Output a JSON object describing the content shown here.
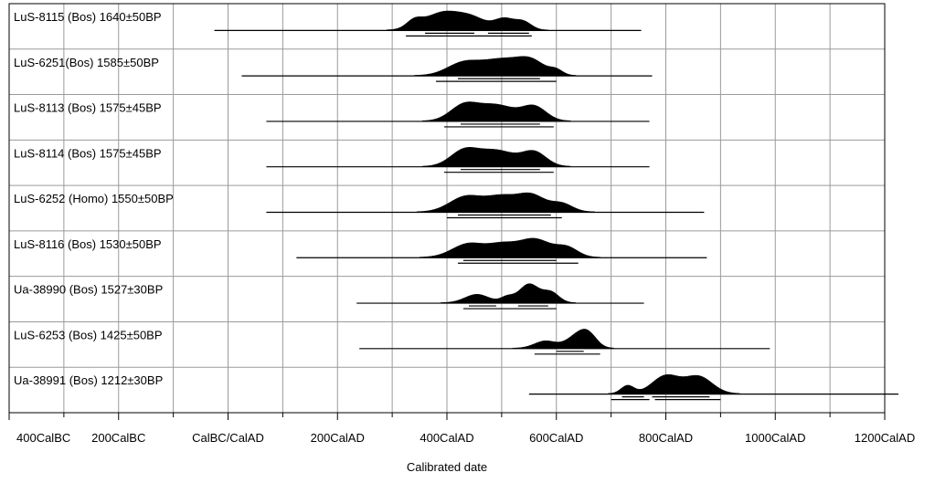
{
  "chart_data": {
    "type": "area",
    "xlabel": "Calibrated date",
    "xlim": [
      -400,
      1200
    ],
    "grid": true,
    "x_ticks": [
      {
        "value": -400,
        "label": "400CalBC"
      },
      {
        "value": -200,
        "label": "200CalBC"
      },
      {
        "value": 0,
        "label": "CalBC/CalAD"
      },
      {
        "value": 200,
        "label": "200CalAD"
      },
      {
        "value": 400,
        "label": "400CalAD"
      },
      {
        "value": 600,
        "label": "600CalAD"
      },
      {
        "value": 800,
        "label": "800CalAD"
      },
      {
        "value": 1000,
        "label": "1000CalAD"
      },
      {
        "value": 1200,
        "label": "1200CalAD"
      }
    ],
    "samples": [
      {
        "label": "LuS-8115 (Bos)  1640±50BP",
        "range": [
          -25,
          755
        ],
        "peaks": [
          {
            "c": 340,
            "s": 14,
            "h": 0.35
          },
          {
            "c": 395,
            "s": 35,
            "h": 0.9
          },
          {
            "c": 450,
            "s": 25,
            "h": 0.45
          },
          {
            "c": 505,
            "s": 18,
            "h": 0.55
          },
          {
            "c": 540,
            "s": 15,
            "h": 0.4
          }
        ],
        "sigma1": [
          [
            360,
            450
          ],
          [
            475,
            550
          ]
        ],
        "sigma2": [
          [
            325,
            555
          ]
        ]
      },
      {
        "label": "LuS-6251(Bos)  1585±50BP",
        "range": [
          25,
          775
        ],
        "peaks": [
          {
            "c": 430,
            "s": 30,
            "h": 0.8
          },
          {
            "c": 500,
            "s": 35,
            "h": 1.0
          },
          {
            "c": 555,
            "s": 25,
            "h": 0.85
          },
          {
            "c": 600,
            "s": 12,
            "h": 0.3
          }
        ],
        "sigma1": [
          [
            420,
            570
          ]
        ],
        "sigma2": [
          [
            380,
            600
          ]
        ]
      },
      {
        "label": "LuS-8113 (Bos)  1575±45BP",
        "range": [
          70,
          770
        ],
        "peaks": [
          {
            "c": 430,
            "s": 25,
            "h": 0.9
          },
          {
            "c": 490,
            "s": 35,
            "h": 1.0
          },
          {
            "c": 560,
            "s": 22,
            "h": 0.85
          }
        ],
        "sigma1": [
          [
            425,
            570
          ]
        ],
        "sigma2": [
          [
            395,
            595
          ]
        ]
      },
      {
        "label": "LuS-8114 (Bos)  1575±45BP",
        "range": [
          70,
          770
        ],
        "peaks": [
          {
            "c": 430,
            "s": 25,
            "h": 0.9
          },
          {
            "c": 490,
            "s": 35,
            "h": 1.0
          },
          {
            "c": 560,
            "s": 22,
            "h": 0.85
          }
        ],
        "sigma1": [
          [
            425,
            570
          ]
        ],
        "sigma2": [
          [
            395,
            595
          ]
        ]
      },
      {
        "label": "LuS-6252 (Homo)  1550±50BP",
        "range": [
          70,
          870
        ],
        "peaks": [
          {
            "c": 435,
            "s": 30,
            "h": 0.85
          },
          {
            "c": 500,
            "s": 28,
            "h": 0.8
          },
          {
            "c": 555,
            "s": 25,
            "h": 0.9
          },
          {
            "c": 610,
            "s": 20,
            "h": 0.45
          }
        ],
        "sigma1": [
          [
            420,
            590
          ]
        ],
        "sigma2": [
          [
            400,
            610
          ]
        ]
      },
      {
        "label": "LuS-8116 (Bos)  1530±50BP",
        "range": [
          125,
          875
        ],
        "peaks": [
          {
            "c": 440,
            "s": 30,
            "h": 0.75
          },
          {
            "c": 500,
            "s": 25,
            "h": 0.6
          },
          {
            "c": 560,
            "s": 30,
            "h": 1.0
          },
          {
            "c": 620,
            "s": 20,
            "h": 0.5
          }
        ],
        "sigma1": [
          [
            430,
            600
          ]
        ],
        "sigma2": [
          [
            420,
            640
          ]
        ]
      },
      {
        "label": "Ua-38990 (Bos)  1527±30BP",
        "range": [
          235,
          760
        ],
        "peaks": [
          {
            "c": 455,
            "s": 22,
            "h": 0.45
          },
          {
            "c": 510,
            "s": 12,
            "h": 0.3
          },
          {
            "c": 550,
            "s": 18,
            "h": 1.0
          },
          {
            "c": 590,
            "s": 15,
            "h": 0.55
          }
        ],
        "sigma1": [
          [
            440,
            490
          ],
          [
            530,
            585
          ]
        ],
        "sigma2": [
          [
            430,
            600
          ]
        ]
      },
      {
        "label": "LuS-6253 (Bos)  1425±50BP",
        "range": [
          240,
          990
        ],
        "peaks": [
          {
            "c": 580,
            "s": 20,
            "h": 0.55
          },
          {
            "c": 640,
            "s": 20,
            "h": 1.0
          },
          {
            "c": 660,
            "s": 15,
            "h": 0.7
          }
        ],
        "sigma1": [
          [
            600,
            650
          ]
        ],
        "sigma2": [
          [
            560,
            680
          ]
        ]
      },
      {
        "label": "Ua-38991 (Bos)  1212±30BP",
        "range": [
          550,
          1225
        ],
        "peaks": [
          {
            "c": 730,
            "s": 12,
            "h": 0.45
          },
          {
            "c": 800,
            "s": 25,
            "h": 1.0
          },
          {
            "c": 860,
            "s": 25,
            "h": 0.95
          }
        ],
        "sigma1": [
          [
            720,
            760
          ],
          [
            775,
            880
          ]
        ],
        "sigma2": [
          [
            700,
            770
          ],
          [
            780,
            900
          ]
        ]
      }
    ]
  }
}
